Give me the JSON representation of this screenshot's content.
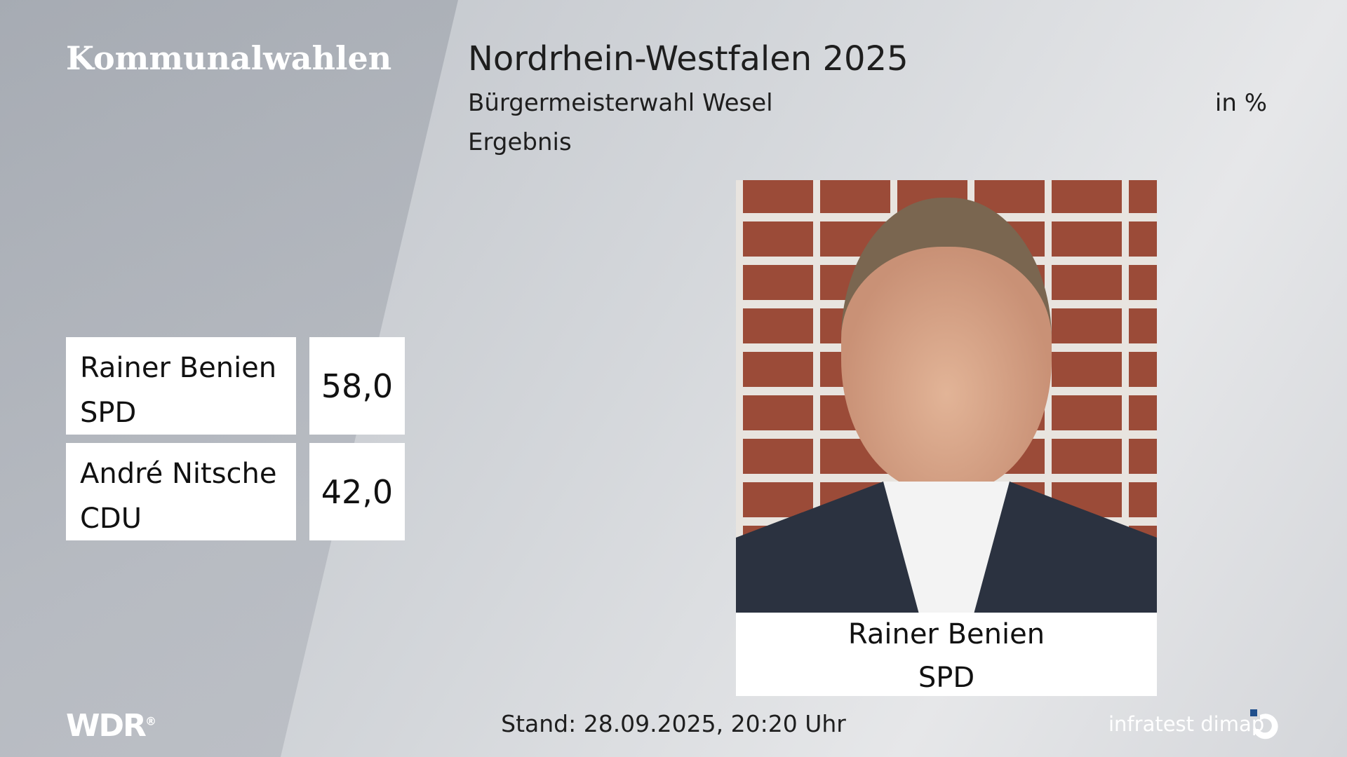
{
  "brand": "Kommunalwahlen",
  "header": {
    "title": "Nordrhein-Westfalen 2025",
    "subtitle": "Bürgermeisterwahl Wesel",
    "unit": "in %",
    "label": "Ergebnis"
  },
  "results": [
    {
      "name": "Rainer Benien",
      "party": "SPD",
      "value": "58,0"
    },
    {
      "name": "André Nitsche",
      "party": "CDU",
      "value": "42,0"
    }
  ],
  "winner": {
    "name": "Rainer Benien",
    "party": "SPD"
  },
  "footer": {
    "logo": "WDR",
    "stand": "Stand: 28.09.2025, 20:20 Uhr",
    "source": "infratest dimap"
  },
  "colors": {
    "dimap_blue": "#1f4e8c"
  }
}
